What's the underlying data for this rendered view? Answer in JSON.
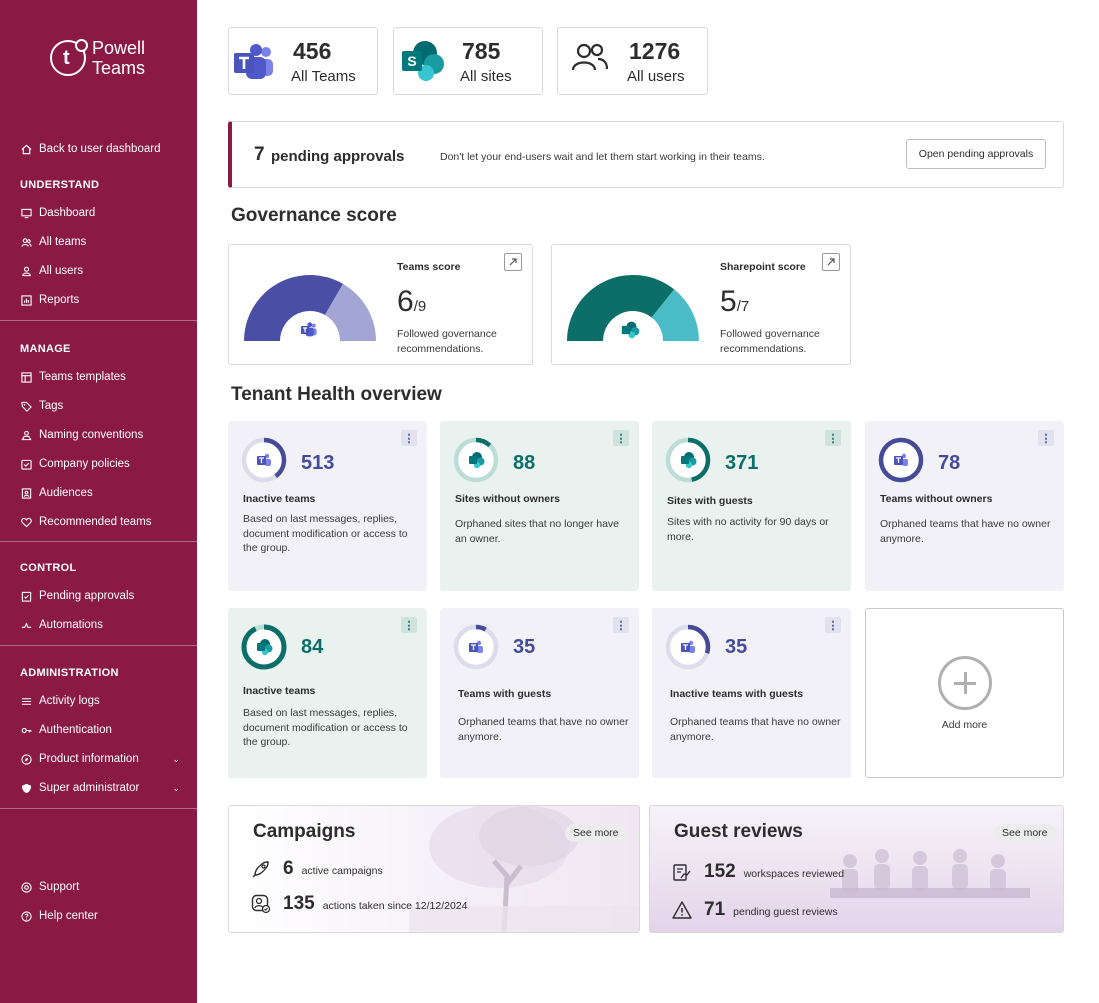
{
  "brand": {
    "name_line1": "Powell",
    "name_line2": "Teams",
    "accent": "#8a1a44"
  },
  "sidebar": {
    "back": "Back to user dashboard",
    "understand": {
      "title": "UNDERSTAND",
      "items": [
        "Dashboard",
        "All teams",
        "All users",
        "Reports"
      ]
    },
    "manage": {
      "title": "MANAGE",
      "items": [
        "Teams templates",
        "Tags",
        "Naming conventions",
        "Company policies",
        "Audiences",
        "Recommended teams"
      ]
    },
    "control": {
      "title": "CONTROL",
      "items": [
        "Pending approvals",
        "Automations"
      ]
    },
    "administration": {
      "title": "ADMINISTRATION",
      "items": [
        "Activity logs",
        "Authentication",
        "Product information",
        "Super administrator"
      ]
    },
    "footer": [
      "Support",
      "Help center"
    ]
  },
  "stats": [
    {
      "value": "456",
      "label": "All Teams",
      "icon": "teams-logo-icon"
    },
    {
      "value": "785",
      "label": "All sites",
      "icon": "sharepoint-logo-icon"
    },
    {
      "value": "1276",
      "label": "All users",
      "icon": "users-icon"
    }
  ],
  "pending": {
    "count": "7",
    "title": "pending approvals",
    "description": "Don't let your end-users wait and let them start working in their teams.",
    "button": "Open pending approvals"
  },
  "governance": {
    "title": "Governance score",
    "cards": [
      {
        "title": "Teams score",
        "value": "6",
        "max": "/9",
        "description": "Followed governance recommendations.",
        "score": 6,
        "out_of": 9,
        "colors": [
          "#4a4fa5",
          "#a3a6d4"
        ]
      },
      {
        "title": "Sharepoint score",
        "value": "5",
        "max": "/7",
        "description": "Followed governance recommendations.",
        "score": 5,
        "out_of": 7,
        "colors": [
          "#0b6e68",
          "#4bbcc7"
        ]
      }
    ]
  },
  "tenant": {
    "title": "Tenant Health overview",
    "cards": [
      {
        "value": "513",
        "title": "Inactive teams",
        "description": "Based on last messages, replies, document modification or access to the group.",
        "theme": "teams",
        "fraction": 0.4
      },
      {
        "value": "88",
        "title": "Sites without owners",
        "description": "Orphaned sites that no longer have an owner.",
        "theme": "sharepoint",
        "fraction": 0.12
      },
      {
        "value": "371",
        "title": "Sites with guests",
        "description": "Sites with no activity for 90 days or more.",
        "theme": "sharepoint",
        "fraction": 0.47
      },
      {
        "value": "78",
        "title": "Teams without owners",
        "description": "Orphaned teams that have no owner anymore.",
        "theme": "teams",
        "fraction": 1.0
      },
      {
        "value": "84",
        "title": "Inactive teams",
        "description": "Based on last messages, replies, document modification or access to the group.",
        "theme": "sharepoint",
        "fraction": 0.93
      },
      {
        "value": "35",
        "title": "Teams with guests",
        "description": "Orphaned teams that have no owner anymore.",
        "theme": "teams",
        "fraction": 0.08
      },
      {
        "value": "35",
        "title": "Inactive teams with guests",
        "description": "Orphaned teams that have no owner anymore.",
        "theme": "teams",
        "fraction": 0.3
      }
    ],
    "add_more": "Add more"
  },
  "campaigns": {
    "title": "Campaigns",
    "see_more": "See more",
    "rows": [
      {
        "value": "6",
        "label": "active campaigns",
        "icon": "rocket-icon"
      },
      {
        "value": "135",
        "label": "actions taken since 12/12/2024",
        "icon": "user-check-icon"
      }
    ]
  },
  "guest_reviews": {
    "title": "Guest reviews",
    "see_more": "See more",
    "rows": [
      {
        "value": "152",
        "label": "workspaces reviewed",
        "icon": "review-icon"
      },
      {
        "value": "71",
        "label": "pending guest reviews",
        "icon": "warning-icon"
      }
    ]
  }
}
